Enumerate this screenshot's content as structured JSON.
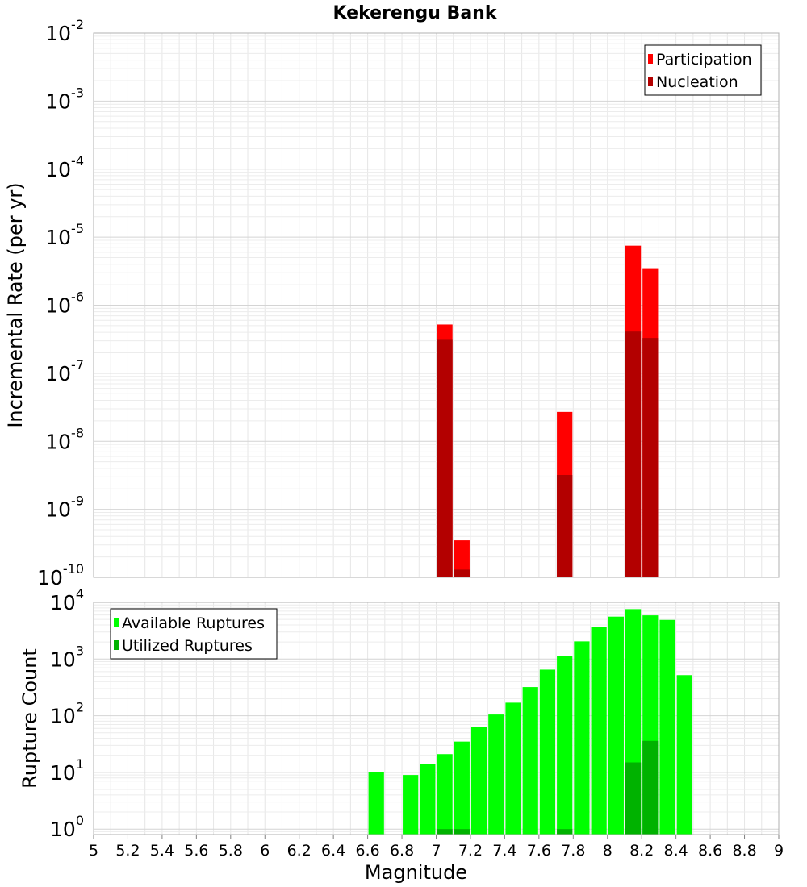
{
  "chart_data": [
    {
      "type": "bar",
      "title": "Kekerengu Bank",
      "ylabel": "Incremental Rate (per yr)",
      "xlabel": "",
      "xlim": [
        5,
        9
      ],
      "ylim": [
        1e-10,
        0.01
      ],
      "yscale": "log",
      "grid": true,
      "legend_position": "top-right",
      "bin_width": 0.1,
      "series": [
        {
          "name": "Participation",
          "color": "#ff0000",
          "x": [
            7.05,
            7.15,
            7.75,
            8.15,
            8.25
          ],
          "values": [
            5.2e-07,
            3.5e-10,
            2.7e-08,
            7.5e-06,
            3.5e-06
          ]
        },
        {
          "name": "Nucleation",
          "color": "#b30000",
          "x": [
            7.05,
            7.15,
            7.75,
            8.15,
            8.25
          ],
          "values": [
            3.1e-07,
            1.3e-10,
            3.2e-09,
            4.1e-07,
            3.3e-07
          ]
        }
      ]
    },
    {
      "type": "bar",
      "title": "",
      "ylabel": "Rupture Count",
      "xlabel": "Magnitude",
      "xlim": [
        5,
        9
      ],
      "ylim": [
        0.8,
        10000
      ],
      "yscale": "log",
      "grid": true,
      "legend_position": "top-left",
      "bin_width": 0.1,
      "x_ticks": [
        "5",
        "5.2",
        "5.4",
        "5.6",
        "5.8",
        "6",
        "6.2",
        "6.4",
        "6.6",
        "6.8",
        "7",
        "7.2",
        "7.4",
        "7.6",
        "7.8",
        "8",
        "8.2",
        "8.4",
        "8.6",
        "8.8",
        "9"
      ],
      "series": [
        {
          "name": "Available Ruptures",
          "color": "#00ff00",
          "x": [
            6.65,
            6.85,
            6.95,
            7.05,
            7.15,
            7.25,
            7.35,
            7.45,
            7.55,
            7.65,
            7.75,
            7.85,
            7.95,
            8.05,
            8.15,
            8.25,
            8.35,
            8.45
          ],
          "values": [
            10,
            9,
            14,
            21,
            35,
            63,
            105,
            170,
            320,
            650,
            1150,
            2050,
            3700,
            5600,
            7600,
            5900,
            4900,
            520
          ]
        },
        {
          "name": "Utilized Ruptures",
          "color": "#00b200",
          "x": [
            7.05,
            7.15,
            7.75,
            8.15,
            8.25
          ],
          "values": [
            1,
            1,
            1,
            15,
            36
          ]
        }
      ]
    }
  ]
}
